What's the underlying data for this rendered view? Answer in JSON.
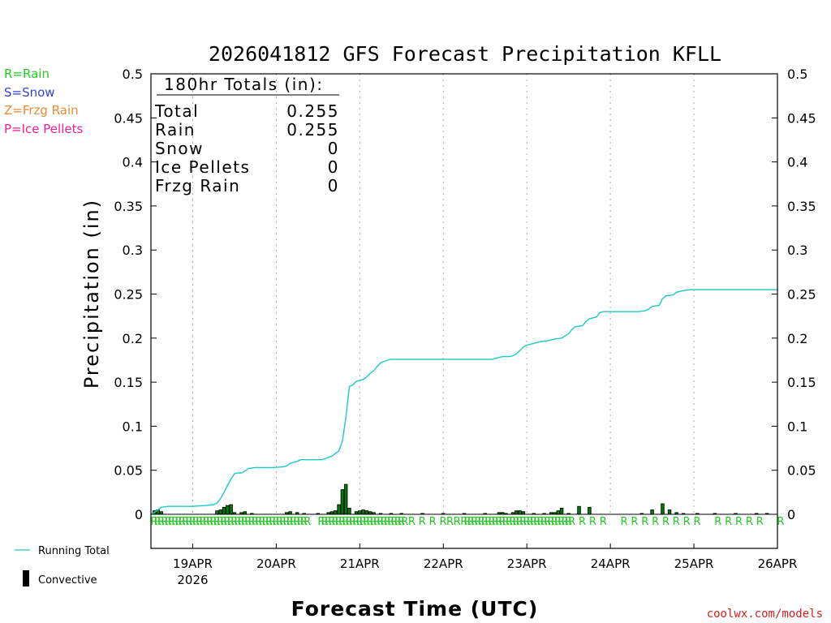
{
  "colors": {
    "running_total": "#1fc8c8",
    "convective": "#000000",
    "bar_fill": "#007a00",
    "rain": "#22cc22",
    "snow": "#3344dd",
    "frzg": "#ee8833",
    "ice": "#ee2299",
    "credit": "#d42020",
    "grid": "#aaaaaa"
  },
  "legend": {
    "rain": "R=Rain",
    "snow": "S=Snow",
    "frzg": "Z=Frzg Rain",
    "ice": "P=Ice Pellets",
    "running_total": "Running Total",
    "convective": "Convective"
  },
  "credit": "coolwx.com/models",
  "totals": {
    "header": "180hr Totals (in):",
    "rows": [
      {
        "label": "Total",
        "value": "0.255"
      },
      {
        "label": "Rain",
        "value": "0.255"
      },
      {
        "label": "Snow",
        "value": "0"
      },
      {
        "label": "Ice Pellets",
        "value": "0"
      },
      {
        "label": "Frzg Rain",
        "value": "0"
      }
    ]
  },
  "chart_data": {
    "type": "line+bar",
    "title": "2026041812 GFS Forecast Precipitation KFLL",
    "xlabel": "Forecast Time (UTC)",
    "ylabel": "Precipitation (in)",
    "x_units": "forecast hours from 2026-04-18 12Z",
    "xlim": [
      0,
      180
    ],
    "ylim": [
      0,
      0.5
    ],
    "yticks": [
      "0",
      "0.05",
      "0.1",
      "0.15",
      "0.2",
      "0.25",
      "0.3",
      "0.35",
      "0.4",
      "0.45",
      "0.5"
    ],
    "xticks": [
      {
        "hour": 12,
        "label": "19APR",
        "sublabel": "2026"
      },
      {
        "hour": 36,
        "label": "20APR"
      },
      {
        "hour": 60,
        "label": "21APR"
      },
      {
        "hour": 84,
        "label": "22APR"
      },
      {
        "hour": 108,
        "label": "23APR"
      },
      {
        "hour": 132,
        "label": "24APR"
      },
      {
        "hour": 156,
        "label": "25APR"
      },
      {
        "hour": 180,
        "label": "26APR"
      }
    ],
    "running_total": [
      [
        0,
        0
      ],
      [
        1,
        0.002
      ],
      [
        2,
        0.005
      ],
      [
        3,
        0.008
      ],
      [
        5,
        0.009
      ],
      [
        8,
        0.009
      ],
      [
        12,
        0.009
      ],
      [
        16,
        0.01
      ],
      [
        18,
        0.011
      ],
      [
        19,
        0.013
      ],
      [
        20,
        0.018
      ],
      [
        21,
        0.025
      ],
      [
        22,
        0.033
      ],
      [
        23,
        0.04
      ],
      [
        24,
        0.046
      ],
      [
        25,
        0.047
      ],
      [
        26,
        0.047
      ],
      [
        27,
        0.049
      ],
      [
        28,
        0.052
      ],
      [
        30,
        0.053
      ],
      [
        35,
        0.053
      ],
      [
        38,
        0.054
      ],
      [
        39,
        0.055
      ],
      [
        40,
        0.058
      ],
      [
        42,
        0.06
      ],
      [
        43,
        0.062
      ],
      [
        47,
        0.062
      ],
      [
        49,
        0.062
      ],
      [
        50,
        0.063
      ],
      [
        52,
        0.066
      ],
      [
        53,
        0.069
      ],
      [
        54,
        0.072
      ],
      [
        55,
        0.083
      ],
      [
        56,
        0.11
      ],
      [
        57,
        0.145
      ],
      [
        58,
        0.147
      ],
      [
        59,
        0.151
      ],
      [
        60,
        0.152
      ],
      [
        61,
        0.153
      ],
      [
        62,
        0.156
      ],
      [
        63,
        0.16
      ],
      [
        64,
        0.163
      ],
      [
        65,
        0.168
      ],
      [
        66,
        0.172
      ],
      [
        68,
        0.175
      ],
      [
        69,
        0.176
      ],
      [
        72,
        0.176
      ],
      [
        80,
        0.176
      ],
      [
        90,
        0.176
      ],
      [
        98,
        0.176
      ],
      [
        100,
        0.178
      ],
      [
        101,
        0.179
      ],
      [
        103,
        0.179
      ],
      [
        104,
        0.18
      ],
      [
        105,
        0.182
      ],
      [
        106,
        0.186
      ],
      [
        107,
        0.19
      ],
      [
        108,
        0.192
      ],
      [
        110,
        0.194
      ],
      [
        112,
        0.196
      ],
      [
        114,
        0.197
      ],
      [
        116,
        0.199
      ],
      [
        118,
        0.2
      ],
      [
        120,
        0.205
      ],
      [
        121,
        0.21
      ],
      [
        122,
        0.213
      ],
      [
        124,
        0.214
      ],
      [
        125,
        0.219
      ],
      [
        126,
        0.222
      ],
      [
        128,
        0.224
      ],
      [
        129,
        0.229
      ],
      [
        130,
        0.23
      ],
      [
        132,
        0.23
      ],
      [
        140,
        0.23
      ],
      [
        142,
        0.231
      ],
      [
        143,
        0.233
      ],
      [
        144,
        0.236
      ],
      [
        146,
        0.237
      ],
      [
        147,
        0.245
      ],
      [
        148,
        0.248
      ],
      [
        150,
        0.249
      ],
      [
        151,
        0.252
      ],
      [
        153,
        0.254
      ],
      [
        155,
        0.255
      ],
      [
        160,
        0.255
      ],
      [
        180,
        0.255
      ]
    ],
    "hourly_bars": [
      [
        1,
        0.004
      ],
      [
        2,
        0.005
      ],
      [
        3,
        0.003
      ],
      [
        19,
        0.004
      ],
      [
        20,
        0.005
      ],
      [
        21,
        0.008
      ],
      [
        22,
        0.01
      ],
      [
        23,
        0.011
      ],
      [
        24,
        0.002
      ],
      [
        26,
        0.002
      ],
      [
        27,
        0.003
      ],
      [
        29,
        0.001
      ],
      [
        39,
        0.002
      ],
      [
        40,
        0.003
      ],
      [
        42,
        0.002
      ],
      [
        44,
        0.001
      ],
      [
        48,
        0.001
      ],
      [
        51,
        0.002
      ],
      [
        52,
        0.003
      ],
      [
        53,
        0.004
      ],
      [
        54,
        0.011
      ],
      [
        55,
        0.028
      ],
      [
        56,
        0.034
      ],
      [
        57,
        0.007
      ],
      [
        59,
        0.003
      ],
      [
        60,
        0.004
      ],
      [
        61,
        0.005
      ],
      [
        62,
        0.004
      ],
      [
        63,
        0.003
      ],
      [
        64,
        0.002
      ],
      [
        66,
        0.001
      ],
      [
        69,
        0.001
      ],
      [
        72,
        0.001
      ],
      [
        78,
        0.001
      ],
      [
        84,
        0.001
      ],
      [
        90,
        0.001
      ],
      [
        96,
        0.001
      ],
      [
        100,
        0.002
      ],
      [
        101,
        0.002
      ],
      [
        102,
        0.001
      ],
      [
        104,
        0.002
      ],
      [
        105,
        0.004
      ],
      [
        106,
        0.004
      ],
      [
        107,
        0.003
      ],
      [
        110,
        0.001
      ],
      [
        113,
        0.001
      ],
      [
        115,
        0.002
      ],
      [
        116,
        0.002
      ],
      [
        117,
        0.004
      ],
      [
        118,
        0.007
      ],
      [
        120,
        0.001
      ],
      [
        123,
        0.009
      ],
      [
        126,
        0.008
      ],
      [
        141,
        0.001
      ],
      [
        144,
        0.005
      ],
      [
        147,
        0.012
      ],
      [
        149,
        0.005
      ],
      [
        151,
        0.002
      ],
      [
        153,
        0.001
      ],
      [
        157,
        0.001
      ],
      [
        162,
        0.001
      ],
      [
        168,
        0.001
      ],
      [
        174,
        0.001
      ],
      [
        177,
        0.001
      ]
    ],
    "ptype_hours": [
      0,
      1,
      2,
      3,
      4,
      5,
      6,
      7,
      8,
      9,
      10,
      11,
      12,
      13,
      14,
      15,
      16,
      17,
      18,
      19,
      20,
      21,
      22,
      23,
      24,
      25,
      26,
      27,
      28,
      29,
      30,
      31,
      32,
      33,
      34,
      35,
      36,
      37,
      38,
      39,
      40,
      41,
      42,
      43,
      44,
      48,
      49,
      50,
      51,
      52,
      53,
      54,
      55,
      56,
      57,
      58,
      59,
      60,
      61,
      62,
      63,
      64,
      65,
      66,
      67,
      68,
      69,
      70,
      71,
      72,
      74,
      77,
      80,
      83,
      85,
      87,
      89,
      90,
      91,
      92,
      93,
      94,
      95,
      96,
      97,
      98,
      99,
      100,
      101,
      102,
      103,
      104,
      105,
      106,
      107,
      108,
      109,
      110,
      111,
      112,
      113,
      114,
      115,
      116,
      117,
      118,
      119,
      120,
      123,
      126,
      129,
      135,
      138,
      141,
      144,
      147,
      150,
      153,
      156,
      162,
      165,
      168,
      171,
      174,
      180
    ],
    "ptype_letter": "R"
  }
}
